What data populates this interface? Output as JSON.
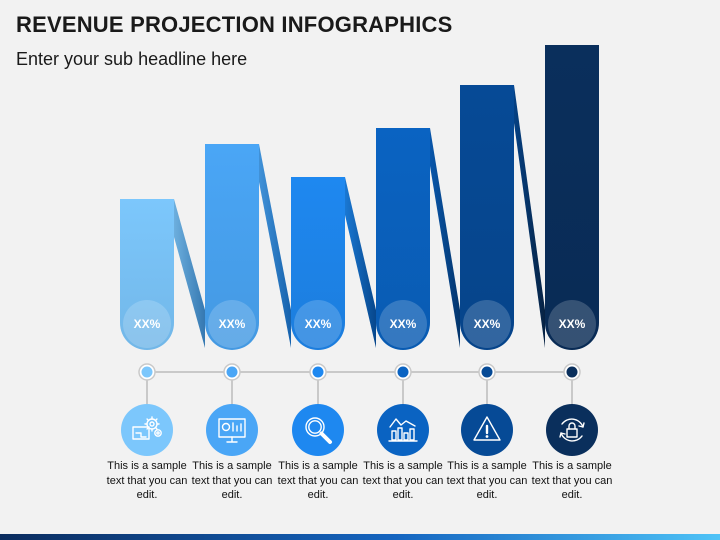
{
  "title": "REVENUE PROJECTION INFOGRAPHICS",
  "subtitle": "Enter your sub headline here",
  "steps": [
    {
      "label": "XX%",
      "text": "This is a sample text that you can edit.",
      "icon": "gears-blueprint-icon",
      "color": "#7cc7fc"
    },
    {
      "label": "XX%",
      "text": "This is a sample text that you can edit.",
      "icon": "monitor-settings-icon",
      "color": "#4aa6f6"
    },
    {
      "label": "XX%",
      "text": "This is a sample text that you can edit.",
      "icon": "magnifier-icon",
      "color": "#1e88f0"
    },
    {
      "label": "XX%",
      "text": "This is a sample text that you can edit.",
      "icon": "chart-trend-icon",
      "color": "#0a63c2"
    },
    {
      "label": "XX%",
      "text": "This is a sample text that you can edit.",
      "icon": "warning-icon",
      "color": "#064a96"
    },
    {
      "label": "XX%",
      "text": "This is a sample text that you can edit.",
      "icon": "lock-refresh-icon",
      "color": "#0a2f5c"
    }
  ]
}
